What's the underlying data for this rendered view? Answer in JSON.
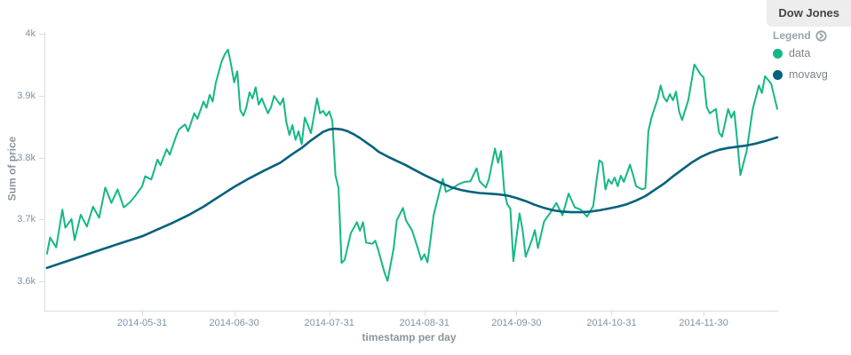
{
  "panel": {
    "title": "Dow Jones"
  },
  "legend": {
    "title": "Legend",
    "toggle_icon": "circle-arrow-right-icon",
    "items": [
      {
        "label": "data",
        "color": "#15b786"
      },
      {
        "label": "movavg",
        "color": "#04617c"
      }
    ]
  },
  "chart_data": {
    "type": "line",
    "title": "Dow Jones",
    "xlabel": "timestamp per day",
    "ylabel": "Sum of price",
    "x_unit": "days since 2014-04-28",
    "x_start_date": "2014-04-30",
    "x_end_date": "2014-12-24",
    "xlim_days": [
      0,
      240
    ],
    "ylim": [
      3550,
      4005
    ],
    "grid": false,
    "legend_position": "top-right",
    "y_ticks": [
      {
        "label": "4k",
        "value": 4000
      },
      {
        "label": "3.9k",
        "value": 3900
      },
      {
        "label": "3.8k",
        "value": 3800
      },
      {
        "label": "3.7k",
        "value": 3700
      },
      {
        "label": "3.6k",
        "value": 3600
      }
    ],
    "x_ticks": [
      {
        "label": "2014-05-31",
        "day": 33
      },
      {
        "label": "2014-06-30",
        "day": 63
      },
      {
        "label": "2014-07-31",
        "day": 94
      },
      {
        "label": "2014-08-31",
        "day": 125
      },
      {
        "label": "2014-09-30",
        "day": 155
      },
      {
        "label": "2014-10-31",
        "day": 186
      },
      {
        "label": "2014-11-30",
        "day": 216
      }
    ],
    "series": [
      {
        "name": "data",
        "color": "#15b786",
        "width": 2,
        "points": [
          [
            2,
            3645
          ],
          [
            3,
            3671
          ],
          [
            5,
            3655
          ],
          [
            7,
            3716
          ],
          [
            8,
            3687
          ],
          [
            10,
            3701
          ],
          [
            11,
            3667
          ],
          [
            13,
            3708
          ],
          [
            15,
            3689
          ],
          [
            17,
            3721
          ],
          [
            19,
            3703
          ],
          [
            21,
            3752
          ],
          [
            23,
            3727
          ],
          [
            25,
            3749
          ],
          [
            27,
            3720
          ],
          [
            29,
            3728
          ],
          [
            31,
            3740
          ],
          [
            33,
            3754
          ],
          [
            34,
            3770
          ],
          [
            36,
            3765
          ],
          [
            38,
            3797
          ],
          [
            39,
            3788
          ],
          [
            41,
            3814
          ],
          [
            42,
            3805
          ],
          [
            44,
            3834
          ],
          [
            45,
            3846
          ],
          [
            47,
            3854
          ],
          [
            48,
            3843
          ],
          [
            50,
            3872
          ],
          [
            51,
            3863
          ],
          [
            53,
            3891
          ],
          [
            54,
            3881
          ],
          [
            55,
            3902
          ],
          [
            56,
            3891
          ],
          [
            57,
            3921
          ],
          [
            58,
            3939
          ],
          [
            59,
            3957
          ],
          [
            60,
            3968
          ],
          [
            61,
            3975
          ],
          [
            62,
            3950
          ],
          [
            63,
            3922
          ],
          [
            64,
            3940
          ],
          [
            65,
            3877
          ],
          [
            66,
            3868
          ],
          [
            67,
            3882
          ],
          [
            68,
            3906
          ],
          [
            69,
            3896
          ],
          [
            70,
            3914
          ],
          [
            71,
            3886
          ],
          [
            72,
            3896
          ],
          [
            74,
            3872
          ],
          [
            75,
            3882
          ],
          [
            76,
            3900
          ],
          [
            78,
            3886
          ],
          [
            79,
            3896
          ],
          [
            80,
            3858
          ],
          [
            81,
            3837
          ],
          [
            82,
            3853
          ],
          [
            83,
            3829
          ],
          [
            84,
            3843
          ],
          [
            85,
            3822
          ],
          [
            86,
            3865
          ],
          [
            87,
            3853
          ],
          [
            88,
            3840
          ],
          [
            90,
            3896
          ],
          [
            91,
            3872
          ],
          [
            92,
            3876
          ],
          [
            93,
            3868
          ],
          [
            94,
            3875
          ],
          [
            95,
            3860
          ],
          [
            96,
            3772
          ],
          [
            97,
            3751
          ],
          [
            98,
            3630
          ],
          [
            99,
            3635
          ],
          [
            101,
            3678
          ],
          [
            103,
            3696
          ],
          [
            104,
            3682
          ],
          [
            105,
            3696
          ],
          [
            106,
            3663
          ],
          [
            108,
            3661
          ],
          [
            109,
            3666
          ],
          [
            110,
            3650
          ],
          [
            112,
            3614
          ],
          [
            113,
            3601
          ],
          [
            114,
            3628
          ],
          [
            115,
            3654
          ],
          [
            116,
            3699
          ],
          [
            118,
            3719
          ],
          [
            119,
            3699
          ],
          [
            121,
            3682
          ],
          [
            123,
            3651
          ],
          [
            124,
            3635
          ],
          [
            125,
            3644
          ],
          [
            126,
            3631
          ],
          [
            127,
            3668
          ],
          [
            128,
            3707
          ],
          [
            130,
            3747
          ],
          [
            131,
            3766
          ],
          [
            132,
            3745
          ],
          [
            134,
            3750
          ],
          [
            136,
            3757
          ],
          [
            138,
            3761
          ],
          [
            140,
            3762
          ],
          [
            142,
            3783
          ],
          [
            143,
            3762
          ],
          [
            145,
            3752
          ],
          [
            146,
            3765
          ],
          [
            148,
            3815
          ],
          [
            149,
            3792
          ],
          [
            150,
            3811
          ],
          [
            151,
            3747
          ],
          [
            152,
            3725
          ],
          [
            153,
            3718
          ],
          [
            154,
            3633
          ],
          [
            156,
            3710
          ],
          [
            157,
            3683
          ],
          [
            158,
            3640
          ],
          [
            160,
            3667
          ],
          [
            161,
            3683
          ],
          [
            162,
            3654
          ],
          [
            164,
            3697
          ],
          [
            166,
            3711
          ],
          [
            168,
            3727
          ],
          [
            170,
            3707
          ],
          [
            172,
            3742
          ],
          [
            174,
            3720
          ],
          [
            176,
            3716
          ],
          [
            178,
            3705
          ],
          [
            180,
            3722
          ],
          [
            181,
            3760
          ],
          [
            182,
            3796
          ],
          [
            183,
            3792
          ],
          [
            184,
            3749
          ],
          [
            185,
            3765
          ],
          [
            186,
            3758
          ],
          [
            187,
            3768
          ],
          [
            188,
            3754
          ],
          [
            189,
            3771
          ],
          [
            190,
            3761
          ],
          [
            192,
            3789
          ],
          [
            193,
            3772
          ],
          [
            194,
            3754
          ],
          [
            196,
            3749
          ],
          [
            197,
            3751
          ],
          [
            198,
            3843
          ],
          [
            199,
            3865
          ],
          [
            201,
            3895
          ],
          [
            202,
            3917
          ],
          [
            203,
            3898
          ],
          [
            204,
            3891
          ],
          [
            205,
            3903
          ],
          [
            206,
            3893
          ],
          [
            207,
            3907
          ],
          [
            208,
            3875
          ],
          [
            209,
            3861
          ],
          [
            211,
            3893
          ],
          [
            213,
            3951
          ],
          [
            215,
            3935
          ],
          [
            216,
            3930
          ],
          [
            217,
            3882
          ],
          [
            218,
            3872
          ],
          [
            220,
            3879
          ],
          [
            221,
            3841
          ],
          [
            222,
            3834
          ],
          [
            224,
            3879
          ],
          [
            225,
            3865
          ],
          [
            226,
            3875
          ],
          [
            227,
            3825
          ],
          [
            228,
            3772
          ],
          [
            230,
            3811
          ],
          [
            232,
            3879
          ],
          [
            234,
            3917
          ],
          [
            235,
            3905
          ],
          [
            236,
            3932
          ],
          [
            238,
            3920
          ],
          [
            240,
            3879
          ]
        ]
      },
      {
        "name": "movavg",
        "color": "#04617c",
        "width": 2.6,
        "points": [
          [
            2,
            3622
          ],
          [
            8,
            3632
          ],
          [
            14,
            3642
          ],
          [
            20,
            3652
          ],
          [
            26,
            3662
          ],
          [
            33,
            3673
          ],
          [
            38,
            3684
          ],
          [
            43,
            3695
          ],
          [
            48,
            3707
          ],
          [
            53,
            3721
          ],
          [
            58,
            3737
          ],
          [
            63,
            3753
          ],
          [
            68,
            3767
          ],
          [
            73,
            3780
          ],
          [
            78,
            3792
          ],
          [
            82,
            3806
          ],
          [
            85,
            3816
          ],
          [
            88,
            3828
          ],
          [
            90,
            3835
          ],
          [
            92,
            3842
          ],
          [
            94,
            3846
          ],
          [
            96,
            3847
          ],
          [
            98,
            3846
          ],
          [
            100,
            3843
          ],
          [
            102,
            3838
          ],
          [
            104,
            3832
          ],
          [
            106,
            3825
          ],
          [
            108,
            3818
          ],
          [
            110,
            3810
          ],
          [
            113,
            3802
          ],
          [
            116,
            3795
          ],
          [
            119,
            3788
          ],
          [
            122,
            3780
          ],
          [
            125,
            3772
          ],
          [
            128,
            3765
          ],
          [
            131,
            3758
          ],
          [
            134,
            3752
          ],
          [
            137,
            3748
          ],
          [
            140,
            3745
          ],
          [
            143,
            3743
          ],
          [
            146,
            3742
          ],
          [
            149,
            3741
          ],
          [
            152,
            3739
          ],
          [
            155,
            3735
          ],
          [
            158,
            3730
          ],
          [
            161,
            3724
          ],
          [
            164,
            3719
          ],
          [
            167,
            3715
          ],
          [
            170,
            3713
          ],
          [
            173,
            3712
          ],
          [
            176,
            3712
          ],
          [
            179,
            3713
          ],
          [
            182,
            3715
          ],
          [
            185,
            3718
          ],
          [
            188,
            3721
          ],
          [
            191,
            3725
          ],
          [
            194,
            3731
          ],
          [
            197,
            3738
          ],
          [
            200,
            3748
          ],
          [
            203,
            3758
          ],
          [
            206,
            3770
          ],
          [
            209,
            3781
          ],
          [
            212,
            3792
          ],
          [
            215,
            3801
          ],
          [
            218,
            3808
          ],
          [
            221,
            3813
          ],
          [
            224,
            3816
          ],
          [
            227,
            3818
          ],
          [
            230,
            3820
          ],
          [
            233,
            3823
          ],
          [
            236,
            3827
          ],
          [
            240,
            3833
          ]
        ]
      }
    ]
  }
}
